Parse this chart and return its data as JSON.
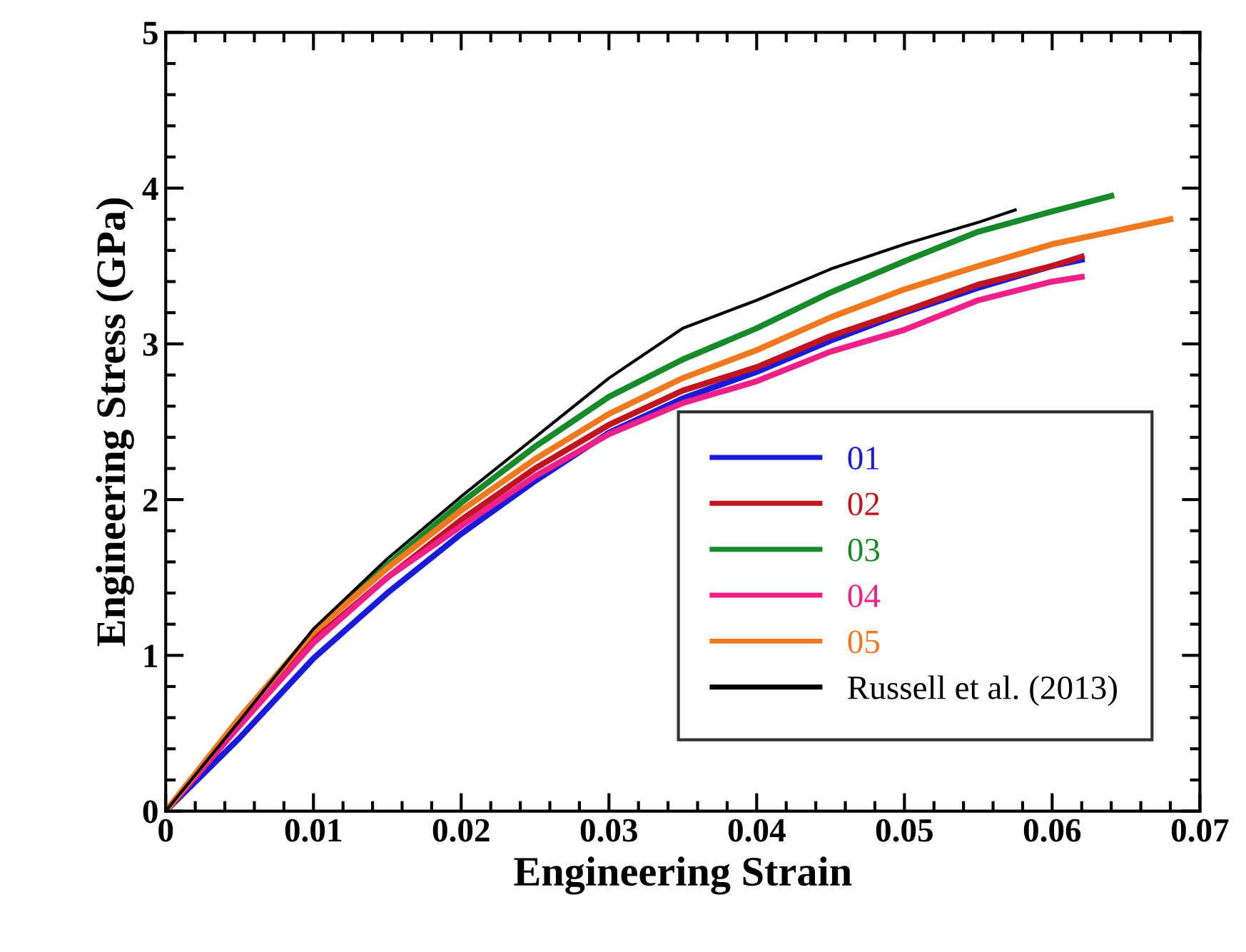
{
  "chart_data": {
    "type": "line",
    "xlabel": "Engineering Strain",
    "ylabel": "Engineering Stress (GPa)",
    "xlim": [
      0,
      0.07
    ],
    "ylim": [
      0,
      5
    ],
    "xticks": [
      0,
      0.01,
      0.02,
      0.03,
      0.04,
      0.05,
      0.06,
      0.07
    ],
    "yticks": [
      0,
      1,
      2,
      3,
      4,
      5
    ],
    "grid": false,
    "legend": "bottom right",
    "line_style": "solid",
    "marker": "none",
    "series": [
      {
        "name": "01",
        "color": "#1a1adb",
        "x": [
          0,
          0.005,
          0.01,
          0.015,
          0.02,
          0.025,
          0.03,
          0.035,
          0.04,
          0.045,
          0.05,
          0.055,
          0.06,
          0.062
        ],
        "values": [
          0,
          0.47,
          0.98,
          1.4,
          1.78,
          2.12,
          2.43,
          2.65,
          2.82,
          3.02,
          3.2,
          3.36,
          3.5,
          3.54
        ]
      },
      {
        "name": "02",
        "color": "#c0141e",
        "x": [
          0,
          0.005,
          0.01,
          0.015,
          0.02,
          0.025,
          0.03,
          0.035,
          0.04,
          0.045,
          0.05,
          0.055,
          0.06,
          0.062
        ],
        "values": [
          0,
          0.55,
          1.1,
          1.5,
          1.87,
          2.2,
          2.48,
          2.7,
          2.85,
          3.05,
          3.21,
          3.38,
          3.5,
          3.56
        ]
      },
      {
        "name": "03",
        "color": "#178a2a",
        "x": [
          0.01,
          0.015,
          0.02,
          0.025,
          0.03,
          0.035,
          0.04,
          0.045,
          0.05,
          0.055,
          0.06,
          0.064
        ],
        "values": [
          1.15,
          1.58,
          1.98,
          2.34,
          2.66,
          2.9,
          3.1,
          3.33,
          3.53,
          3.72,
          3.85,
          3.95
        ]
      },
      {
        "name": "04",
        "color": "#f0208a",
        "x": [
          0,
          0.005,
          0.01,
          0.015,
          0.02,
          0.025,
          0.03,
          0.035,
          0.04,
          0.045,
          0.05,
          0.055,
          0.06,
          0.062
        ],
        "values": [
          0,
          0.55,
          1.08,
          1.5,
          1.83,
          2.15,
          2.42,
          2.62,
          2.76,
          2.95,
          3.09,
          3.28,
          3.4,
          3.43
        ]
      },
      {
        "name": "05",
        "color": "#f0781e",
        "x": [
          0,
          0.005,
          0.01,
          0.015,
          0.02,
          0.025,
          0.03,
          0.035,
          0.04,
          0.045,
          0.05,
          0.055,
          0.06,
          0.065,
          0.068
        ],
        "values": [
          0,
          0.6,
          1.15,
          1.56,
          1.93,
          2.26,
          2.55,
          2.78,
          2.96,
          3.17,
          3.35,
          3.5,
          3.64,
          3.74,
          3.8
        ]
      },
      {
        "name": "Russell et al. (2013)",
        "color": "#000000",
        "x": [
          0,
          0.005,
          0.01,
          0.015,
          0.02,
          0.025,
          0.03,
          0.035,
          0.04,
          0.045,
          0.05,
          0.055,
          0.0575
        ],
        "values": [
          0,
          0.58,
          1.17,
          1.62,
          2.02,
          2.4,
          2.78,
          3.1,
          3.28,
          3.48,
          3.64,
          3.78,
          3.86
        ]
      }
    ]
  }
}
